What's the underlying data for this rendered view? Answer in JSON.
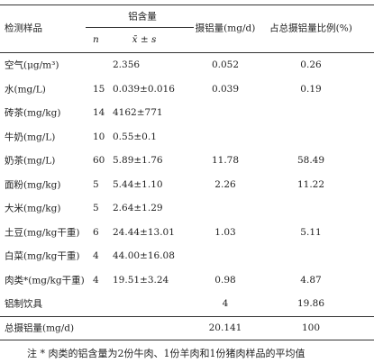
{
  "table": {
    "header": {
      "sample": "检测样品",
      "aluminum": "铝含量",
      "n": "n",
      "mean": "x̄ ± s",
      "intake": "摄铝量(mg/d)",
      "ratio": "占总摄铝量比例(%)"
    },
    "rows": [
      [
        "空气(μg/m³)",
        null,
        "2.356",
        "0.052",
        "0.26"
      ],
      [
        "水(mg/L)",
        "15",
        "0.039±0.016",
        "0.039",
        "0.19"
      ],
      [
        "砖茶(mg/kg)",
        "14",
        "4162±771",
        null,
        null
      ],
      [
        "牛奶(mg/L)",
        "10",
        "0.55±0.1",
        null,
        null
      ],
      [
        "奶茶(mg/L)",
        "60",
        "5.89±1.76",
        "11.78",
        "58.49"
      ],
      [
        "面粉(mg/kg)",
        "5",
        "5.44±1.10",
        "2.26",
        "11.22"
      ],
      [
        "大米(mg/kg)",
        "5",
        "2.64±1.29",
        null,
        null
      ],
      [
        "土豆(mg/kg干重)",
        "6",
        "24.44±13.01",
        "1.03",
        "5.11"
      ],
      [
        "白菜(mg/kg干重)",
        "4",
        "44.00±16.08",
        null,
        null
      ],
      [
        "肉类*(mg/kg干重)",
        "4",
        "19.51±3.24",
        "0.98",
        "4.87"
      ],
      [
        "铝制饮具",
        null,
        null,
        "4",
        "19.86"
      ]
    ],
    "total": [
      "总摄铝量(mg/d)",
      null,
      null,
      "20.141",
      "100"
    ]
  },
  "note": "注 * 肉类的铝含量为2份牛肉、1份羊肉和1份猪肉样品的平均值"
}
